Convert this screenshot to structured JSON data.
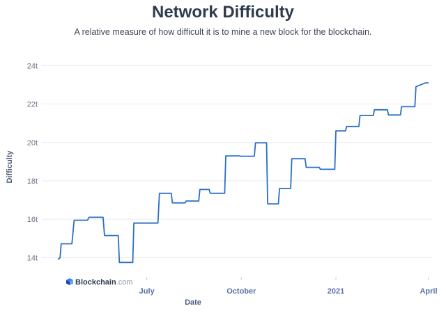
{
  "header": {
    "title": "Network Difficulty",
    "subtitle": "A relative measure of how difficult it is to mine a new block for the blockchain."
  },
  "watermark": {
    "brand": "Blockchain",
    "suffix": ".com",
    "icon": "blockchain-cube-icon"
  },
  "colors": {
    "line": "#2b6fc7",
    "grid": "#e8eaf0",
    "title": "#2f3b4d"
  },
  "chart_data": {
    "type": "line",
    "title": "Network Difficulty",
    "subtitle": "A relative measure of how difficult it is to mine a new block for the blockchain.",
    "xlabel": "Date",
    "ylabel": "Difficulty",
    "ylim": [
      13,
      24.7
    ],
    "xlim": [
      0,
      100
    ],
    "grid": true,
    "x_ticks": [
      {
        "label": "July",
        "x": 24
      },
      {
        "label": "October",
        "x": 49.5
      },
      {
        "label": "2021",
        "x": 75
      },
      {
        "label": "April",
        "x": 100
      }
    ],
    "y_ticks": [
      {
        "label": "14t",
        "value": 14
      },
      {
        "label": "16t",
        "value": 16
      },
      {
        "label": "18t",
        "value": 18
      },
      {
        "label": "20t",
        "value": 20
      },
      {
        "label": "22t",
        "value": 22
      },
      {
        "label": "24t",
        "value": 24
      }
    ],
    "series": [
      {
        "x": [
          0,
          0.6,
          0.9,
          3.8,
          4.4,
          8.0,
          8.4,
          12.2,
          12.6,
          16.3,
          16.6,
          20.2,
          20.5,
          27.0,
          27.4,
          30.6,
          30.9,
          34.3,
          34.6,
          38.0,
          38.3,
          40.8,
          41.1,
          45.0,
          45.3,
          49.0,
          49.3,
          53.0,
          53.3,
          56.3,
          56.6,
          59.5,
          59.8,
          62.8,
          63.1,
          66.7,
          67.0,
          70.5,
          70.8,
          74.7,
          75.0,
          77.6,
          77.9,
          81.2,
          81.5,
          85.1,
          85.4,
          88.9,
          89.2,
          92.4,
          92.7,
          96.3,
          96.6,
          99.1,
          99.4,
          100
        ],
        "y": [
          13.9,
          14.0,
          14.72,
          14.72,
          15.95,
          15.95,
          16.1,
          16.1,
          15.15,
          15.15,
          13.75,
          13.75,
          15.8,
          15.8,
          17.35,
          17.35,
          16.85,
          16.85,
          16.95,
          16.95,
          17.55,
          17.55,
          17.35,
          17.35,
          19.3,
          19.3,
          19.28,
          19.28,
          19.98,
          19.98,
          16.8,
          16.8,
          17.6,
          17.6,
          19.15,
          19.15,
          18.7,
          18.7,
          18.6,
          18.6,
          20.6,
          20.6,
          20.83,
          20.83,
          21.4,
          21.4,
          21.7,
          21.7,
          21.43,
          21.43,
          21.86,
          21.86,
          22.9,
          23.1,
          23.1,
          23.1
        ]
      }
    ]
  }
}
